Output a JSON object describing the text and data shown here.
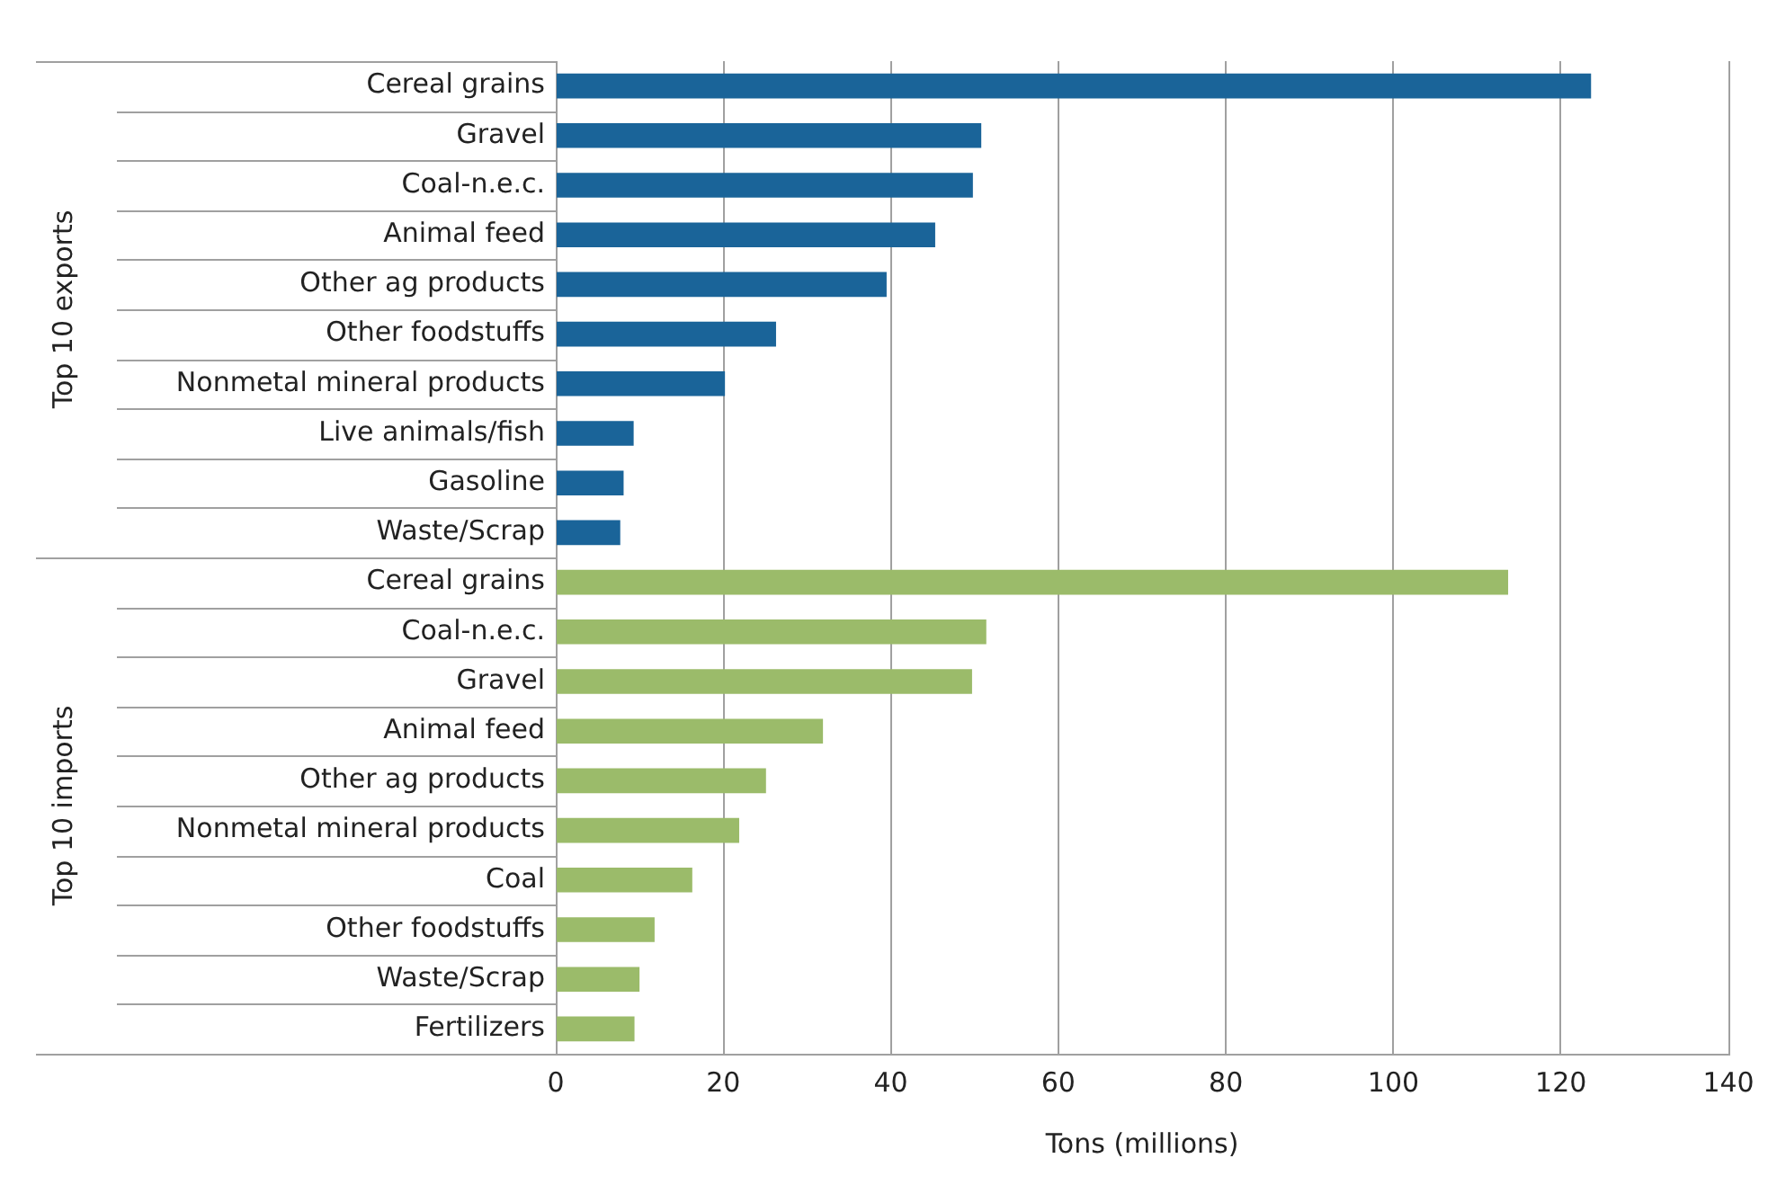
{
  "chart_data": {
    "type": "bar",
    "orientation": "horizontal",
    "xlabel": "Tons (millions)",
    "categories": [
      "Cereal grains",
      "Gravel",
      "Coal-n.e.c.",
      "Animal feed",
      "Other ag products",
      "Other foodstuffs",
      "Nonmetal mineral products",
      "Live animals/fish",
      "Gasoline",
      "Waste/Scrap",
      "Cereal grains",
      "Coal-n.e.c.",
      "Gravel",
      "Animal feed",
      "Other ag products",
      "Nonmetal mineral products",
      "Coal",
      "Other foodstuffs",
      "Waste/Scrap",
      "Fertilizers"
    ],
    "series": [
      {
        "color": "#1a6499",
        "values": [
          123.6,
          50.8,
          49.8,
          45.3,
          39.5,
          26.3,
          20.2,
          9.3,
          8.1,
          7.7,
          null,
          null,
          null,
          null,
          null,
          null,
          null,
          null,
          null,
          null
        ]
      },
      {
        "color": "#9bbb6a",
        "values": [
          null,
          null,
          null,
          null,
          null,
          null,
          null,
          null,
          null,
          null,
          113.7,
          51.4,
          49.7,
          31.9,
          25.1,
          21.9,
          16.3,
          11.8,
          10.0,
          9.4
        ]
      }
    ],
    "annotations": [
      "Top 10 exports",
      "Top 10 imports"
    ],
    "xlim": [
      0,
      140
    ],
    "xticks": [
      0,
      20,
      40,
      60,
      80,
      100,
      120,
      140
    ],
    "grid": "x",
    "legend": false
  }
}
